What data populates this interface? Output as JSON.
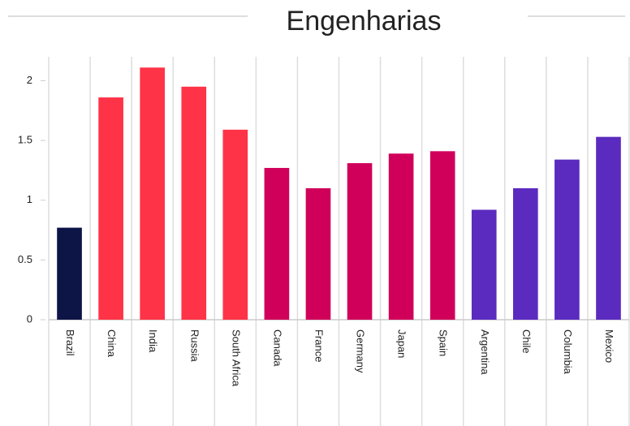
{
  "chart_data": {
    "type": "bar",
    "title": "Engenharias",
    "categories": [
      "Brazil",
      "China",
      "India",
      "Russia",
      "South Africa",
      "Canada",
      "France",
      "Germany",
      "Japan",
      "Spain",
      "Argentina",
      "Chile",
      "Columbia",
      "Mexico"
    ],
    "values": [
      0.77,
      1.86,
      2.11,
      1.95,
      1.59,
      1.27,
      1.1,
      1.31,
      1.39,
      1.41,
      0.92,
      1.1,
      1.34,
      1.53
    ],
    "colors": [
      "#0d1446",
      "#ff3347",
      "#ff3347",
      "#ff3347",
      "#ff3347",
      "#d0005a",
      "#d0005a",
      "#d0005a",
      "#d0005a",
      "#d0005a",
      "#5b2bbf",
      "#5b2bbf",
      "#5b2bbf",
      "#5b2bbf"
    ],
    "ylim": [
      0,
      2.2
    ],
    "yticks": [
      0,
      0.5,
      1,
      1.5,
      2
    ],
    "grid": true
  }
}
